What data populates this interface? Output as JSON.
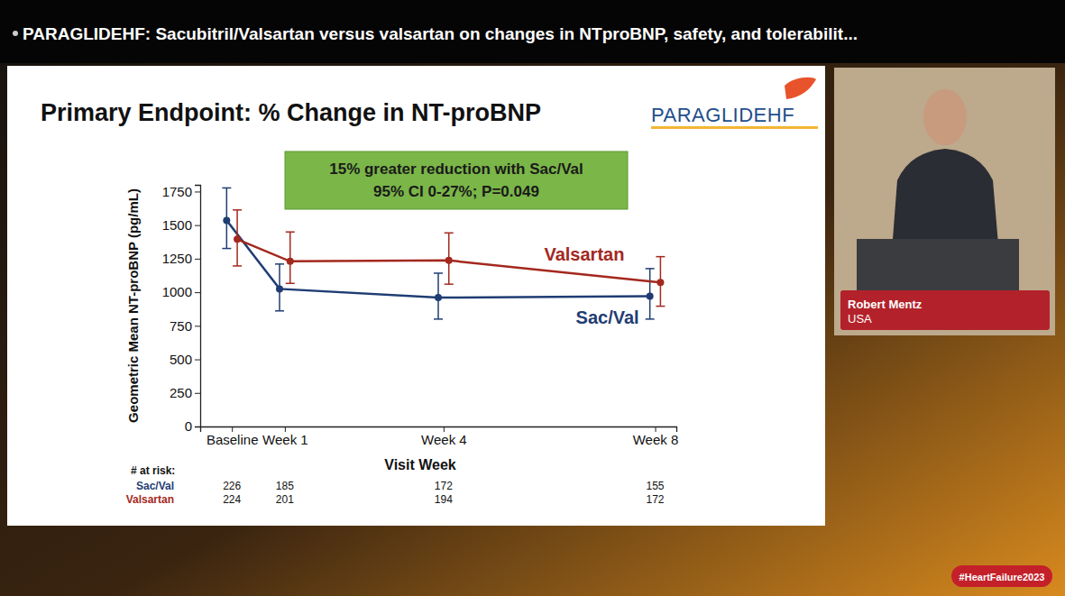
{
  "chart_data": {
    "type": "line",
    "title": "Primary Endpoint: % Change in NT-proBNP",
    "logo": "PARAGLIDEHF",
    "annotation": [
      "15% greater reduction with Sac/Val",
      "95% CI 0-27%; P=0.049"
    ],
    "x_label": "Visit Week",
    "y_label": "Geometric Mean NT-proBNP (pg/mL)",
    "xlim": [
      -0.6,
      8.4
    ],
    "xticks": [
      {
        "value": 0,
        "label": "Baseline"
      },
      {
        "value": 1,
        "label": "Week 1"
      },
      {
        "value": 4,
        "label": "Week 4"
      },
      {
        "value": 8,
        "label": "Week 8"
      }
    ],
    "ylim": [
      0,
      1800
    ],
    "yticks": [
      0,
      250,
      500,
      750,
      1000,
      1250,
      1500,
      1750
    ],
    "grid": false,
    "marker": "circle",
    "series": [
      {
        "name": "Sac/Val",
        "color": "#1f3d73",
        "x": [
          -0.1,
          0.9,
          3.9,
          7.9
        ],
        "values": [
          1535,
          1025,
          960,
          970
        ],
        "lower": [
          1326,
          861,
          800,
          800
        ],
        "upper": [
          1777,
          1210,
          1142,
          1176
        ]
      },
      {
        "name": "Valsartan",
        "color": "#a3281e",
        "x": [
          0.1,
          1.1,
          4.1,
          8.1
        ],
        "values": [
          1395,
          1230,
          1237,
          1073
        ],
        "lower": [
          1196,
          1066,
          1060,
          896
        ],
        "upper": [
          1613,
          1449,
          1442,
          1265
        ]
      }
    ],
    "at_risk": {
      "title": "# at risk:",
      "rows": [
        {
          "name": "Sac/Val",
          "values": [
            226,
            185,
            172,
            155
          ]
        },
        {
          "name": "Valsartan",
          "values": [
            224,
            201,
            194,
            172
          ]
        }
      ]
    }
  },
  "page": {
    "banner": "PARAGLIDEHF: Sacubitril/Valsartan versus valsartan on changes in NTproBNP, safety, and tolerabilit...",
    "speaker": "Robert Mentz",
    "country": "USA",
    "hashtag": "#HeartFailure2023"
  }
}
